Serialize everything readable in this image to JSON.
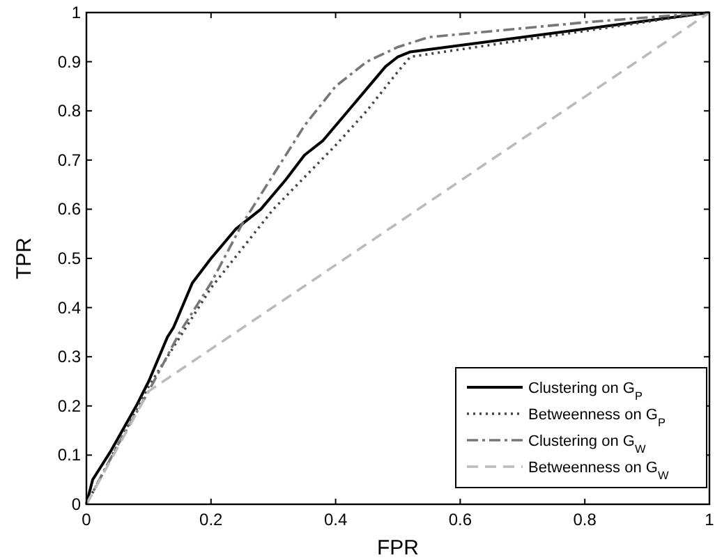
{
  "chart_data": {
    "type": "line",
    "xlabel": "FPR",
    "ylabel": "TPR",
    "xlim": [
      0,
      1
    ],
    "ylim": [
      0,
      1
    ],
    "xticks": [
      0,
      0.2,
      0.4,
      0.6,
      0.8,
      1
    ],
    "yticks": [
      0,
      0.1,
      0.2,
      0.3,
      0.4,
      0.5,
      0.6,
      0.7,
      0.8,
      0.9,
      1
    ],
    "grid": false,
    "legend": "bottom right",
    "series": [
      {
        "name": "Clustering on G$_{P}$",
        "color": "#000000",
        "line_style": "solid",
        "x": [
          0,
          0.01,
          0.04,
          0.08,
          0.1,
          0.13,
          0.14,
          0.17,
          0.2,
          0.24,
          0.28,
          0.32,
          0.35,
          0.38,
          0.42,
          0.46,
          0.48,
          0.5,
          0.52,
          1
        ],
        "values": [
          0,
          0.05,
          0.11,
          0.2,
          0.25,
          0.34,
          0.36,
          0.45,
          0.5,
          0.56,
          0.6,
          0.66,
          0.71,
          0.74,
          0.8,
          0.86,
          0.89,
          0.91,
          0.92,
          1
        ]
      },
      {
        "name": "Betweenness on G$_{P}$",
        "color": "#444444",
        "line_style": "dotted",
        "x": [
          0,
          0.05,
          0.1,
          0.2,
          0.3,
          0.4,
          0.45,
          0.5,
          0.52,
          1
        ],
        "values": [
          0,
          0.12,
          0.24,
          0.44,
          0.6,
          0.73,
          0.8,
          0.88,
          0.91,
          1
        ]
      },
      {
        "name": "Clustering on G$_{W}$",
        "color": "#777777",
        "line_style": "dashdot",
        "x": [
          0,
          0.05,
          0.1,
          0.15,
          0.2,
          0.25,
          0.3,
          0.35,
          0.4,
          0.45,
          0.5,
          0.55,
          0.8,
          1
        ],
        "values": [
          0,
          0.12,
          0.23,
          0.35,
          0.45,
          0.57,
          0.67,
          0.77,
          0.85,
          0.9,
          0.93,
          0.95,
          0.98,
          1
        ]
      },
      {
        "name": "Betweenness on G$_{W}$",
        "color": "#bbbbbb",
        "line_style": "dashed",
        "x": [
          0,
          0.1,
          1
        ],
        "values": [
          0,
          0.23,
          1
        ]
      }
    ]
  }
}
